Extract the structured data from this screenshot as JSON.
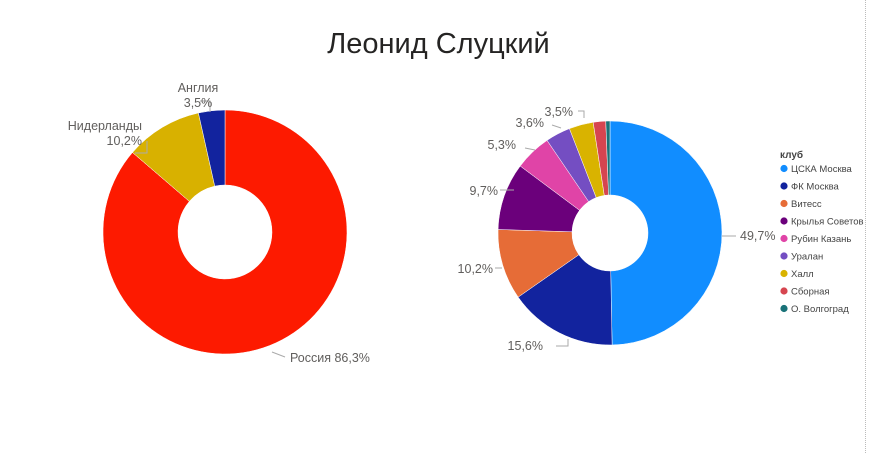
{
  "title": "Леонид Слуцкий",
  "chart_data": [
    {
      "type": "pie",
      "title": "",
      "slices": [
        {
          "name": "Россия",
          "value": 86.3,
          "label": "Россия 86,3%",
          "color": "#fd1a00"
        },
        {
          "name": "Нидерланды",
          "value": 10.2,
          "label": "10,2%",
          "color": "#d8b100"
        },
        {
          "name": "Англия",
          "value": 3.5,
          "label": "3,5%",
          "color": "#12239e"
        }
      ],
      "hole": "donut"
    },
    {
      "type": "pie",
      "title": "",
      "legend_title": "клуб",
      "legend_placement": "right",
      "slices": [
        {
          "name": "ЦСКА Москва",
          "value": 49.7,
          "label": "49,7%",
          "color": "#118dff"
        },
        {
          "name": "ФК Москва",
          "value": 15.6,
          "label": "15,6%",
          "color": "#12239e"
        },
        {
          "name": "Витесс",
          "value": 10.2,
          "label": "10,2%",
          "color": "#e66c37"
        },
        {
          "name": "Крылья Советов",
          "value": 9.7,
          "label": "9,7%",
          "color": "#6b007b"
        },
        {
          "name": "Рубин Казань",
          "value": 5.3,
          "label": "5,3%",
          "color": "#e044a7"
        },
        {
          "name": "Уралан",
          "value": 3.6,
          "label": "3,6%",
          "color": "#744ec2"
        },
        {
          "name": "Халл",
          "value": 3.5,
          "label": "3,5%",
          "color": "#d9b300"
        },
        {
          "name": "Сборная",
          "value": 1.8,
          "label": "",
          "color": "#d64550"
        },
        {
          "name": "О. Волгоград",
          "value": 0.6,
          "label": "",
          "color": "#197278"
        }
      ],
      "hole": "donut"
    }
  ]
}
